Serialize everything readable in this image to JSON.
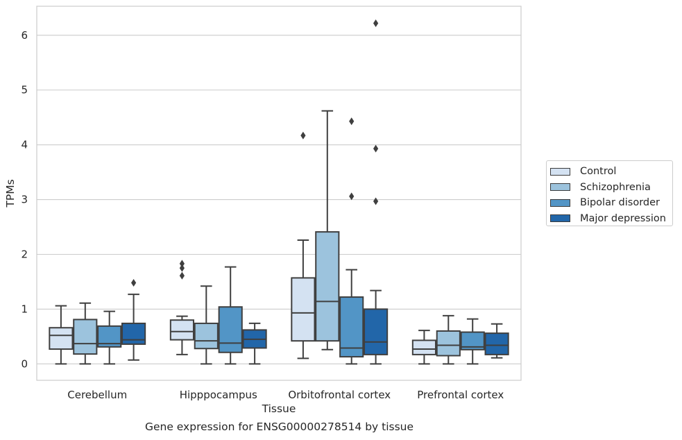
{
  "chart_data": {
    "type": "box",
    "xlabel": "Tissue",
    "ylabel": "TPMs",
    "caption": "Gene expression for ENSG00000278514 by tissue",
    "ylim": [
      -0.3,
      6.53
    ],
    "yticks": [
      0,
      1,
      2,
      3,
      4,
      5,
      6
    ],
    "grid": true,
    "legend_position": "right",
    "categories": [
      "Cerebellum",
      "Hipppocampus",
      "Orbitofrontal cortex",
      "Prefrontal cortex"
    ],
    "series": [
      {
        "name": "Control",
        "color": "#d4e2f2",
        "boxes": [
          {
            "min": 0.0,
            "q1": 0.27,
            "median": 0.52,
            "q3": 0.66,
            "max": 1.06,
            "outliers": []
          },
          {
            "min": 0.17,
            "q1": 0.44,
            "median": 0.59,
            "q3": 0.8,
            "max": 0.87,
            "outliers": [
              1.83,
              1.75,
              1.61
            ]
          },
          {
            "min": 0.1,
            "q1": 0.42,
            "median": 0.93,
            "q3": 1.57,
            "max": 2.26,
            "outliers": [
              4.17
            ]
          },
          {
            "min": 0.0,
            "q1": 0.17,
            "median": 0.27,
            "q3": 0.43,
            "max": 0.61,
            "outliers": []
          }
        ]
      },
      {
        "name": "Schizophrenia",
        "color": "#9cc3dd",
        "boxes": [
          {
            "min": 0.0,
            "q1": 0.18,
            "median": 0.37,
            "q3": 0.81,
            "max": 1.11,
            "outliers": []
          },
          {
            "min": 0.0,
            "q1": 0.28,
            "median": 0.42,
            "q3": 0.74,
            "max": 1.42,
            "outliers": []
          },
          {
            "min": 0.26,
            "q1": 0.42,
            "median": 1.14,
            "q3": 2.41,
            "max": 4.62,
            "outliers": []
          },
          {
            "min": 0.0,
            "q1": 0.15,
            "median": 0.34,
            "q3": 0.6,
            "max": 0.88,
            "outliers": []
          }
        ]
      },
      {
        "name": "Bipolar disorder",
        "color": "#5295c6",
        "boxes": [
          {
            "min": 0.0,
            "q1": 0.31,
            "median": 0.37,
            "q3": 0.69,
            "max": 0.96,
            "outliers": []
          },
          {
            "min": 0.0,
            "q1": 0.21,
            "median": 0.38,
            "q3": 1.04,
            "max": 1.77,
            "outliers": []
          },
          {
            "min": 0.0,
            "q1": 0.13,
            "median": 0.29,
            "q3": 1.22,
            "max": 1.72,
            "outliers": [
              4.43,
              3.06
            ]
          },
          {
            "min": 0.0,
            "q1": 0.26,
            "median": 0.31,
            "q3": 0.58,
            "max": 0.82,
            "outliers": []
          }
        ]
      },
      {
        "name": "Major depression",
        "color": "#2266a9",
        "boxes": [
          {
            "min": 0.07,
            "q1": 0.36,
            "median": 0.44,
            "q3": 0.74,
            "max": 1.27,
            "outliers": [
              1.48
            ]
          },
          {
            "min": 0.0,
            "q1": 0.29,
            "median": 0.45,
            "q3": 0.62,
            "max": 0.74,
            "outliers": []
          },
          {
            "min": 0.0,
            "q1": 0.17,
            "median": 0.4,
            "q3": 1.0,
            "max": 1.34,
            "outliers": [
              6.22,
              3.93,
              2.97
            ]
          },
          {
            "min": 0.11,
            "q1": 0.17,
            "median": 0.34,
            "q3": 0.56,
            "max": 0.73,
            "outliers": []
          }
        ]
      }
    ]
  }
}
